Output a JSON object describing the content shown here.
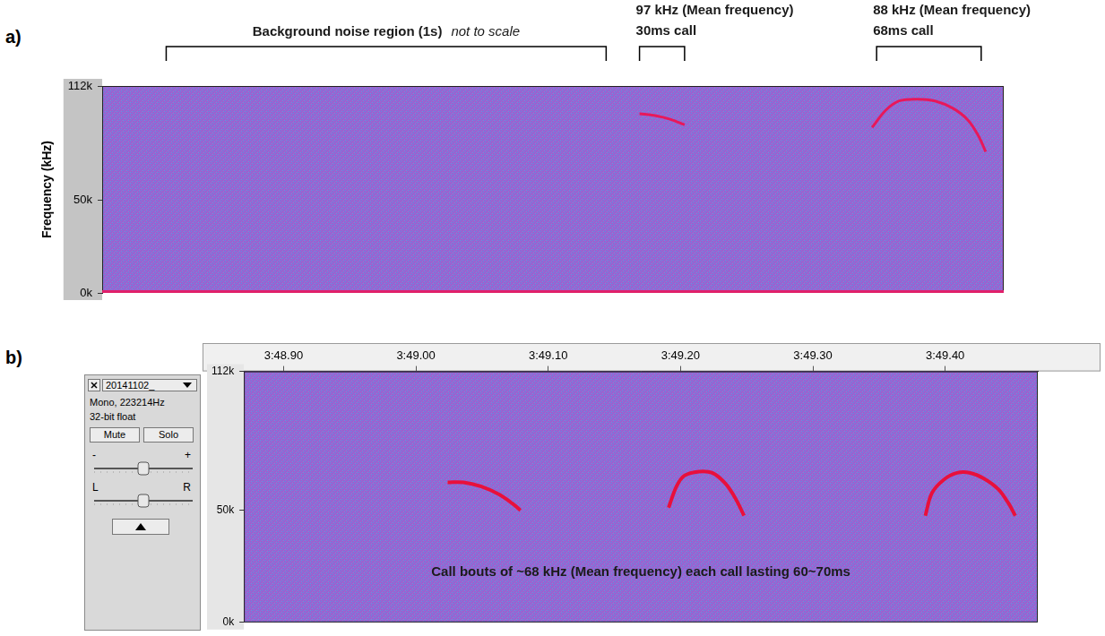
{
  "chart_data": [
    {
      "panel_label": "a)",
      "type": "line",
      "y_label": "Frequency (kHz)",
      "xlim": [
        0,
        100
      ],
      "ylim": [
        0,
        112
      ],
      "yticks": [
        {
          "value": 0,
          "label": "0k"
        },
        {
          "value": 50,
          "label": "50k"
        },
        {
          "value": 112,
          "label": "112k"
        }
      ],
      "tick_labels": "y",
      "grid": false,
      "annotations": [
        {
          "text": [
            "Background noise region (1s)"
          ],
          "note": "not to scale",
          "x": [
            7.1,
            55.9
          ]
        },
        {
          "text": [
            "97 kHz (Mean frequency)",
            "30ms call"
          ],
          "x": [
            59.6,
            64.6
          ]
        },
        {
          "text": [
            "88 kHz (Mean frequency)",
            "68ms call"
          ],
          "x": [
            85.9,
            97.5
          ]
        }
      ],
      "series": [
        {
          "color": "#e8185a",
          "x": [
            59.6,
            61.3,
            63.0,
            64.6
          ],
          "values": [
            97,
            96,
            94,
            91
          ]
        },
        {
          "color": "#e8185a",
          "x": [
            85.4,
            86.9,
            88.4,
            90.4,
            92.4,
            94.4,
            96.0,
            97.2,
            98.0
          ],
          "values": [
            89.6,
            98.8,
            103.9,
            104.9,
            103.9,
            99.8,
            93.7,
            85.0,
            76.4
          ]
        }
      ]
    },
    {
      "panel_label": "b)",
      "type": "line",
      "xlim": [
        228.87,
        229.47
      ],
      "ylim": [
        0,
        112
      ],
      "xticks": [
        {
          "value": 228.9,
          "label": "3:48.90"
        },
        {
          "value": 229.0,
          "label": "3:49.00"
        },
        {
          "value": 229.1,
          "label": "3:49.10"
        },
        {
          "value": 229.2,
          "label": "3:49.20"
        },
        {
          "value": 229.3,
          "label": "3:49.30"
        },
        {
          "value": 229.4,
          "label": "3:49.40"
        }
      ],
      "yticks": [
        {
          "value": 0,
          "label": "0k"
        },
        {
          "value": 50,
          "label": "50k"
        },
        {
          "value": 112,
          "label": "112k"
        }
      ],
      "grid": false,
      "annotations": [
        {
          "text": [
            "Call bouts of ~68 kHz (Mean frequency) each call lasting 60~70ms"
          ]
        }
      ],
      "series": [
        {
          "color": "#e8103c",
          "x": [
            229.024,
            229.036,
            229.049,
            229.063,
            229.073,
            229.079
          ],
          "values": [
            62.5,
            62.5,
            60.7,
            57.1,
            53.0,
            50.0
          ]
        },
        {
          "color": "#e8103c",
          "x": [
            229.191,
            229.197,
            229.203,
            229.214,
            229.224,
            229.234,
            229.242,
            229.248
          ],
          "values": [
            51.2,
            60.7,
            65.5,
            67.3,
            66.7,
            61.9,
            54.8,
            47.6
          ]
        },
        {
          "color": "#e8103c",
          "x": [
            229.385,
            229.39,
            229.399,
            229.409,
            229.419,
            229.429,
            229.44,
            229.448,
            229.453
          ],
          "values": [
            47.6,
            57.7,
            63.7,
            66.7,
            66.7,
            64.3,
            59.5,
            53.0,
            47.6
          ]
        }
      ]
    }
  ],
  "track_panel": {
    "track_name": "20141102_",
    "format_lines": [
      "Mono, 223214Hz",
      "32-bit float"
    ],
    "buttons": [
      "Mute",
      "Solo"
    ],
    "gain_slider": [
      "-",
      "+"
    ],
    "pan_slider": [
      "L",
      "R"
    ]
  }
}
